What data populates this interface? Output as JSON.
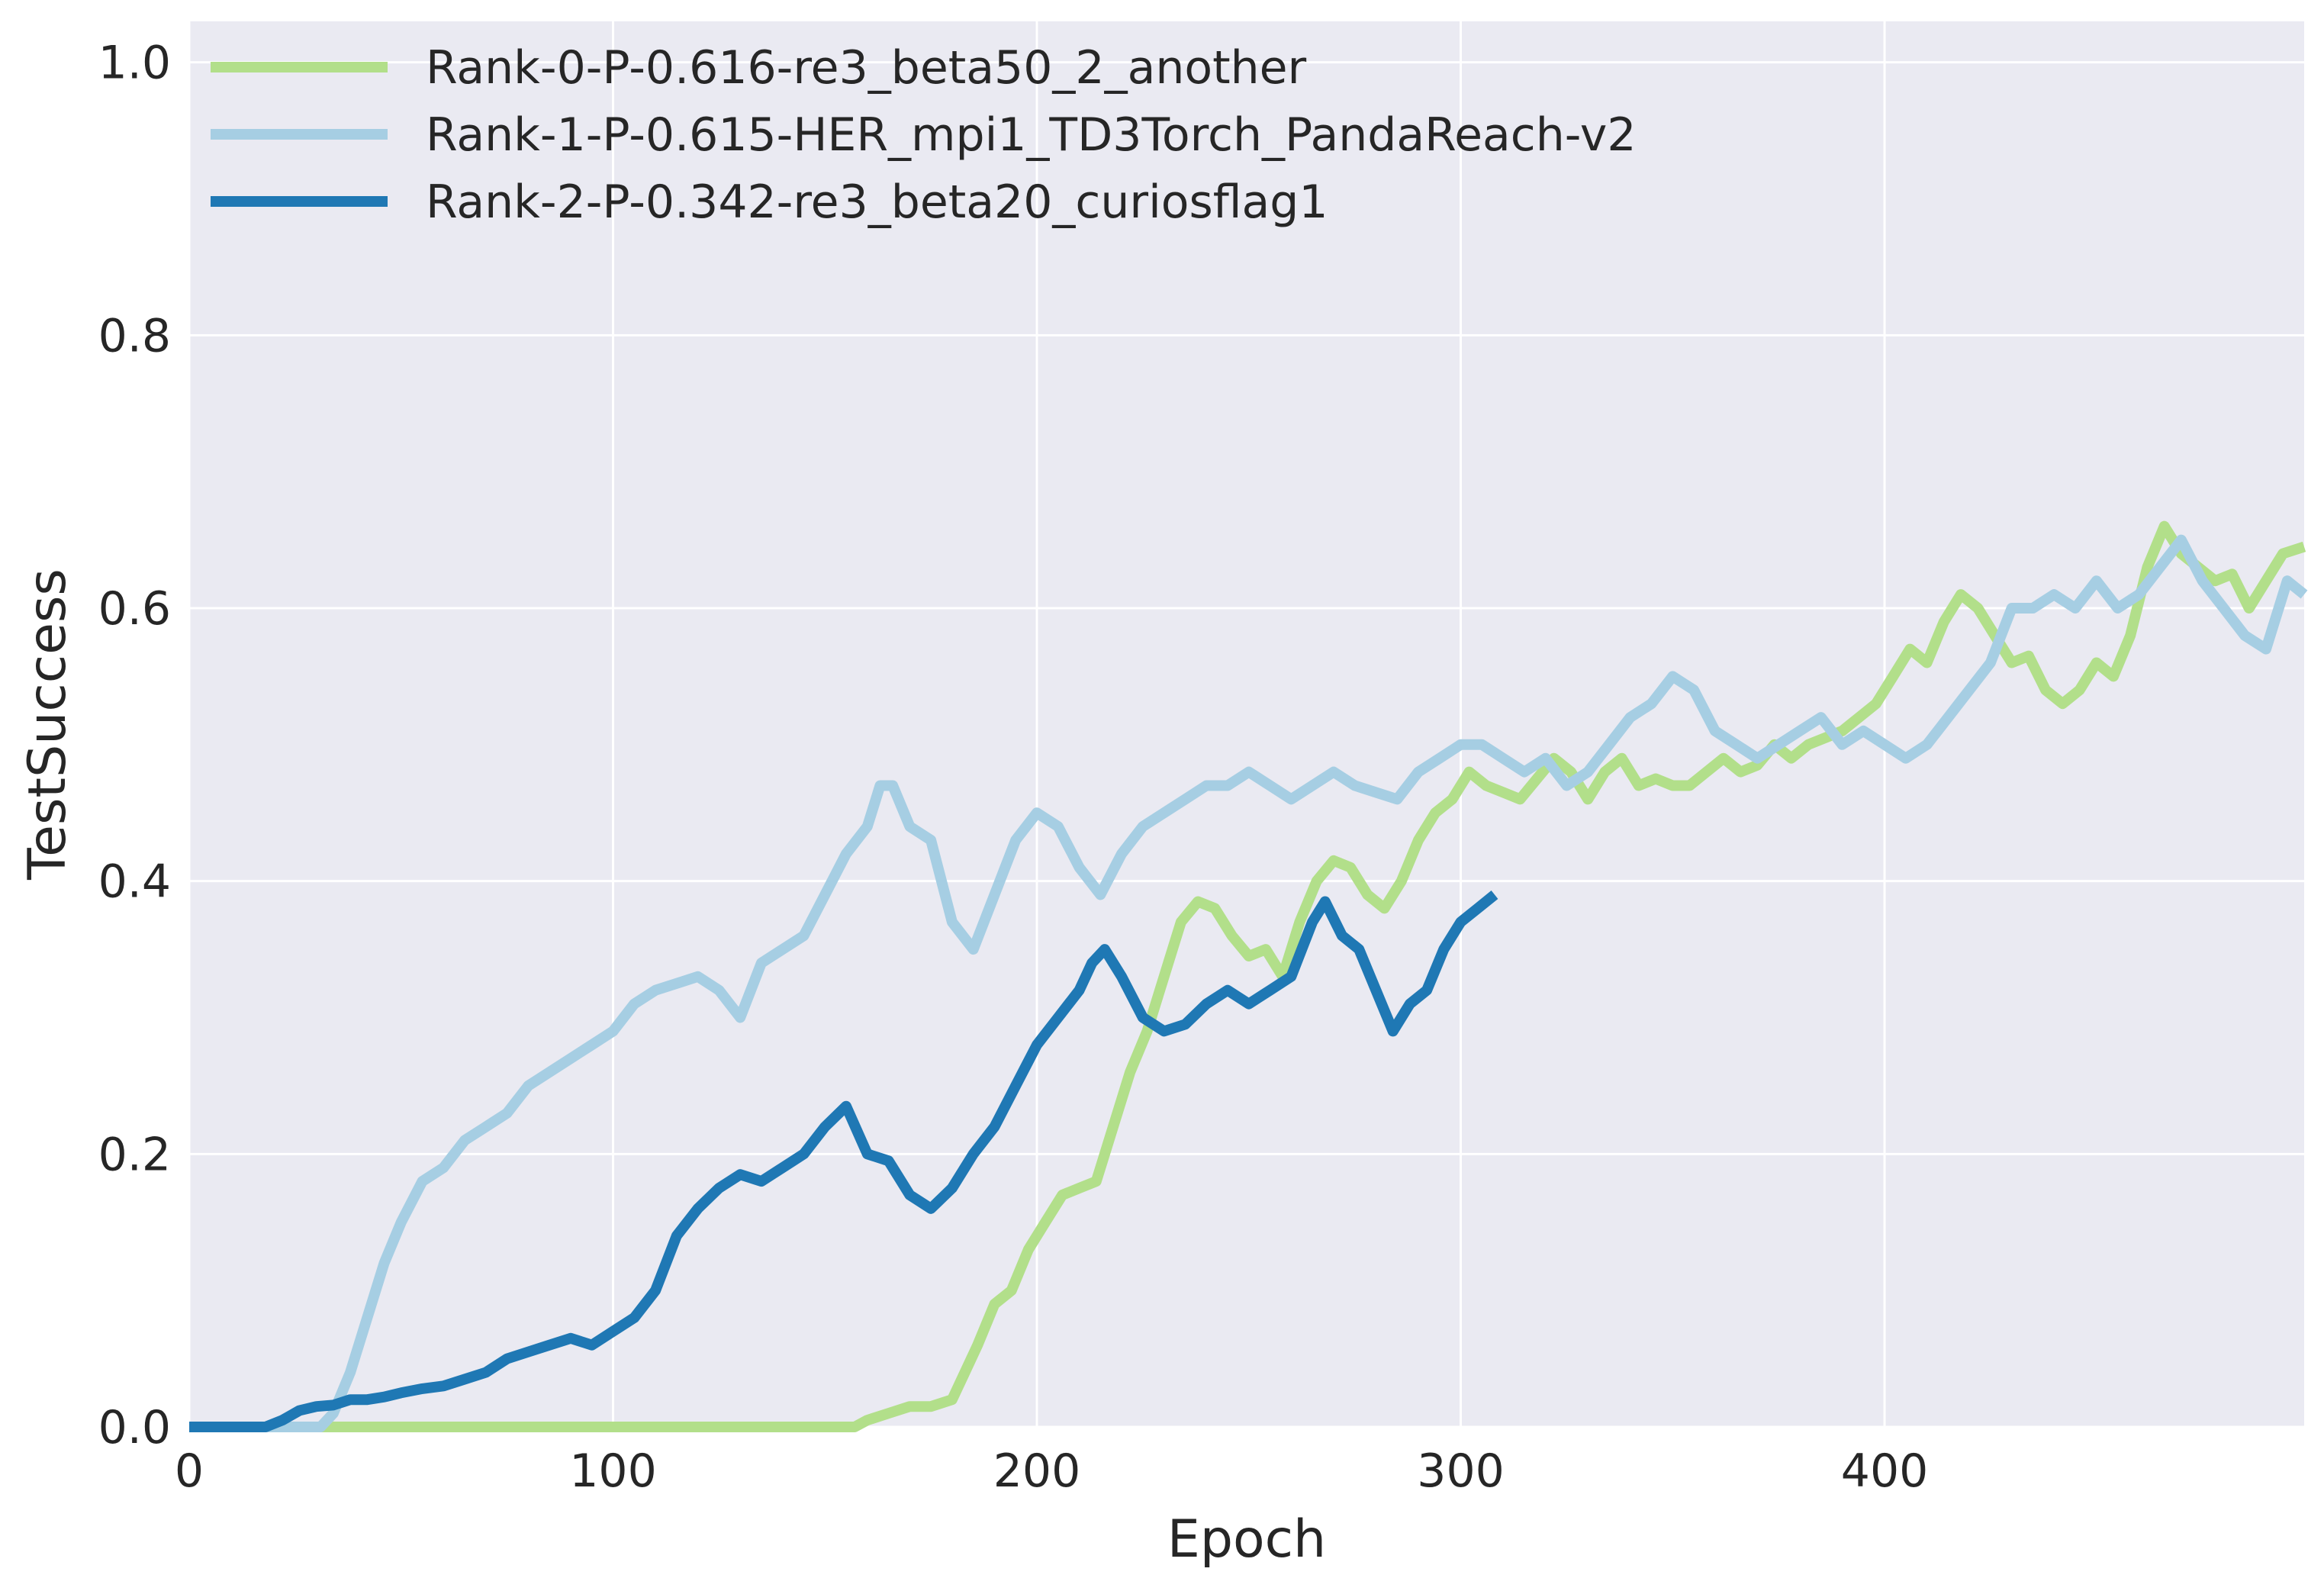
{
  "chart_data": {
    "type": "line",
    "title": "",
    "xlabel": "Epoch",
    "ylabel": "TestSuccess",
    "xlim": [
      0,
      499
    ],
    "ylim": [
      0,
      1.03
    ],
    "xticks": [
      0,
      100,
      200,
      300,
      400
    ],
    "xtick_labels": [
      "0",
      "100",
      "200",
      "300",
      "400"
    ],
    "yticks": [
      0.0,
      0.2,
      0.4,
      0.6,
      0.8,
      1.0
    ],
    "ytick_labels": [
      "0.0",
      "0.2",
      "0.4",
      "0.6",
      "0.8",
      "1.0"
    ],
    "grid": true,
    "legend_position": "top-left",
    "background": "#eaeaf2",
    "series": [
      {
        "name": "Rank-0-P-0.616-re3_beta50_2_another",
        "color": "#b2df8a",
        "x": [
          0,
          150,
          157,
          160,
          165,
          170,
          175,
          180,
          183,
          186,
          190,
          194,
          198,
          202,
          206,
          210,
          214,
          218,
          222,
          226,
          230,
          234,
          238,
          242,
          246,
          250,
          254,
          258,
          262,
          266,
          270,
          274,
          278,
          282,
          286,
          290,
          294,
          298,
          302,
          306,
          310,
          314,
          318,
          322,
          326,
          330,
          334,
          338,
          342,
          346,
          350,
          354,
          358,
          362,
          366,
          370,
          374,
          378,
          382,
          386,
          390,
          394,
          398,
          402,
          406,
          410,
          414,
          418,
          422,
          426,
          430,
          434,
          438,
          442,
          446,
          450,
          454,
          458,
          462,
          466,
          470,
          474,
          478,
          482,
          486,
          490,
          494,
          499
        ],
        "y": [
          0,
          0,
          0,
          0.005,
          0.01,
          0.015,
          0.015,
          0.02,
          0.04,
          0.06,
          0.09,
          0.1,
          0.13,
          0.15,
          0.17,
          0.175,
          0.18,
          0.22,
          0.26,
          0.29,
          0.33,
          0.37,
          0.385,
          0.38,
          0.36,
          0.345,
          0.35,
          0.33,
          0.37,
          0.4,
          0.415,
          0.41,
          0.39,
          0.38,
          0.4,
          0.43,
          0.45,
          0.46,
          0.48,
          0.47,
          0.465,
          0.46,
          0.475,
          0.49,
          0.48,
          0.46,
          0.48,
          0.49,
          0.47,
          0.475,
          0.47,
          0.47,
          0.48,
          0.49,
          0.48,
          0.485,
          0.5,
          0.49,
          0.5,
          0.505,
          0.51,
          0.52,
          0.53,
          0.55,
          0.57,
          0.56,
          0.59,
          0.61,
          0.6,
          0.58,
          0.56,
          0.565,
          0.54,
          0.53,
          0.54,
          0.56,
          0.55,
          0.58,
          0.63,
          0.66,
          0.64,
          0.63,
          0.62,
          0.625,
          0.6,
          0.62,
          0.64,
          0.645
        ]
      },
      {
        "name": "Rank-1-P-0.615-HER_mpi1_TD3Torch_PandaReach-v2",
        "color": "#a6cee3",
        "x": [
          0,
          28,
          31,
          34,
          38,
          42,
          46,
          50,
          55,
          60,
          65,
          70,
          75,
          80,
          85,
          90,
          95,
          100,
          105,
          110,
          115,
          120,
          125,
          130,
          135,
          140,
          145,
          150,
          155,
          160,
          163,
          166,
          170,
          175,
          180,
          185,
          190,
          195,
          200,
          205,
          210,
          215,
          220,
          225,
          230,
          235,
          240,
          245,
          250,
          255,
          260,
          265,
          270,
          275,
          280,
          285,
          290,
          295,
          300,
          305,
          310,
          315,
          320,
          325,
          330,
          335,
          340,
          345,
          350,
          355,
          360,
          365,
          370,
          375,
          380,
          385,
          390,
          395,
          400,
          405,
          410,
          415,
          420,
          425,
          430,
          435,
          440,
          445,
          450,
          455,
          460,
          465,
          470,
          475,
          480,
          485,
          490,
          495,
          499
        ],
        "y": [
          0,
          0,
          0,
          0.01,
          0.04,
          0.08,
          0.12,
          0.15,
          0.18,
          0.19,
          0.21,
          0.22,
          0.23,
          0.25,
          0.26,
          0.27,
          0.28,
          0.29,
          0.31,
          0.32,
          0.325,
          0.33,
          0.32,
          0.3,
          0.34,
          0.35,
          0.36,
          0.39,
          0.42,
          0.44,
          0.47,
          0.47,
          0.44,
          0.43,
          0.37,
          0.35,
          0.39,
          0.43,
          0.45,
          0.44,
          0.41,
          0.39,
          0.42,
          0.44,
          0.45,
          0.46,
          0.47,
          0.47,
          0.48,
          0.47,
          0.46,
          0.47,
          0.48,
          0.47,
          0.465,
          0.46,
          0.48,
          0.49,
          0.5,
          0.5,
          0.49,
          0.48,
          0.49,
          0.47,
          0.48,
          0.5,
          0.52,
          0.53,
          0.55,
          0.54,
          0.51,
          0.5,
          0.49,
          0.5,
          0.51,
          0.52,
          0.5,
          0.51,
          0.5,
          0.49,
          0.5,
          0.52,
          0.54,
          0.56,
          0.6,
          0.6,
          0.61,
          0.6,
          0.62,
          0.6,
          0.61,
          0.63,
          0.65,
          0.62,
          0.6,
          0.58,
          0.57,
          0.62,
          0.61
        ]
      },
      {
        "name": "Rank-2-P-0.342-re3_beta20_curiosflag1",
        "color": "#1f78b4",
        "x": [
          0,
          18,
          22,
          26,
          30,
          34,
          38,
          42,
          46,
          50,
          55,
          60,
          65,
          70,
          75,
          80,
          85,
          90,
          95,
          100,
          105,
          110,
          115,
          120,
          125,
          130,
          135,
          140,
          145,
          150,
          155,
          160,
          165,
          170,
          175,
          180,
          185,
          190,
          195,
          200,
          205,
          210,
          213,
          216,
          220,
          225,
          230,
          235,
          240,
          245,
          250,
          255,
          260,
          265,
          268,
          272,
          276,
          280,
          284,
          288,
          292,
          296,
          300,
          304,
          308
        ],
        "y": [
          0,
          0,
          0.005,
          0.012,
          0.015,
          0.016,
          0.02,
          0.02,
          0.022,
          0.025,
          0.028,
          0.03,
          0.035,
          0.04,
          0.05,
          0.055,
          0.06,
          0.065,
          0.06,
          0.07,
          0.08,
          0.1,
          0.14,
          0.16,
          0.175,
          0.185,
          0.18,
          0.19,
          0.2,
          0.22,
          0.235,
          0.2,
          0.195,
          0.17,
          0.16,
          0.175,
          0.2,
          0.22,
          0.25,
          0.28,
          0.3,
          0.32,
          0.34,
          0.35,
          0.33,
          0.3,
          0.29,
          0.295,
          0.31,
          0.32,
          0.31,
          0.32,
          0.33,
          0.37,
          0.385,
          0.36,
          0.35,
          0.32,
          0.29,
          0.31,
          0.32,
          0.35,
          0.37,
          0.38,
          0.39
        ]
      }
    ]
  }
}
